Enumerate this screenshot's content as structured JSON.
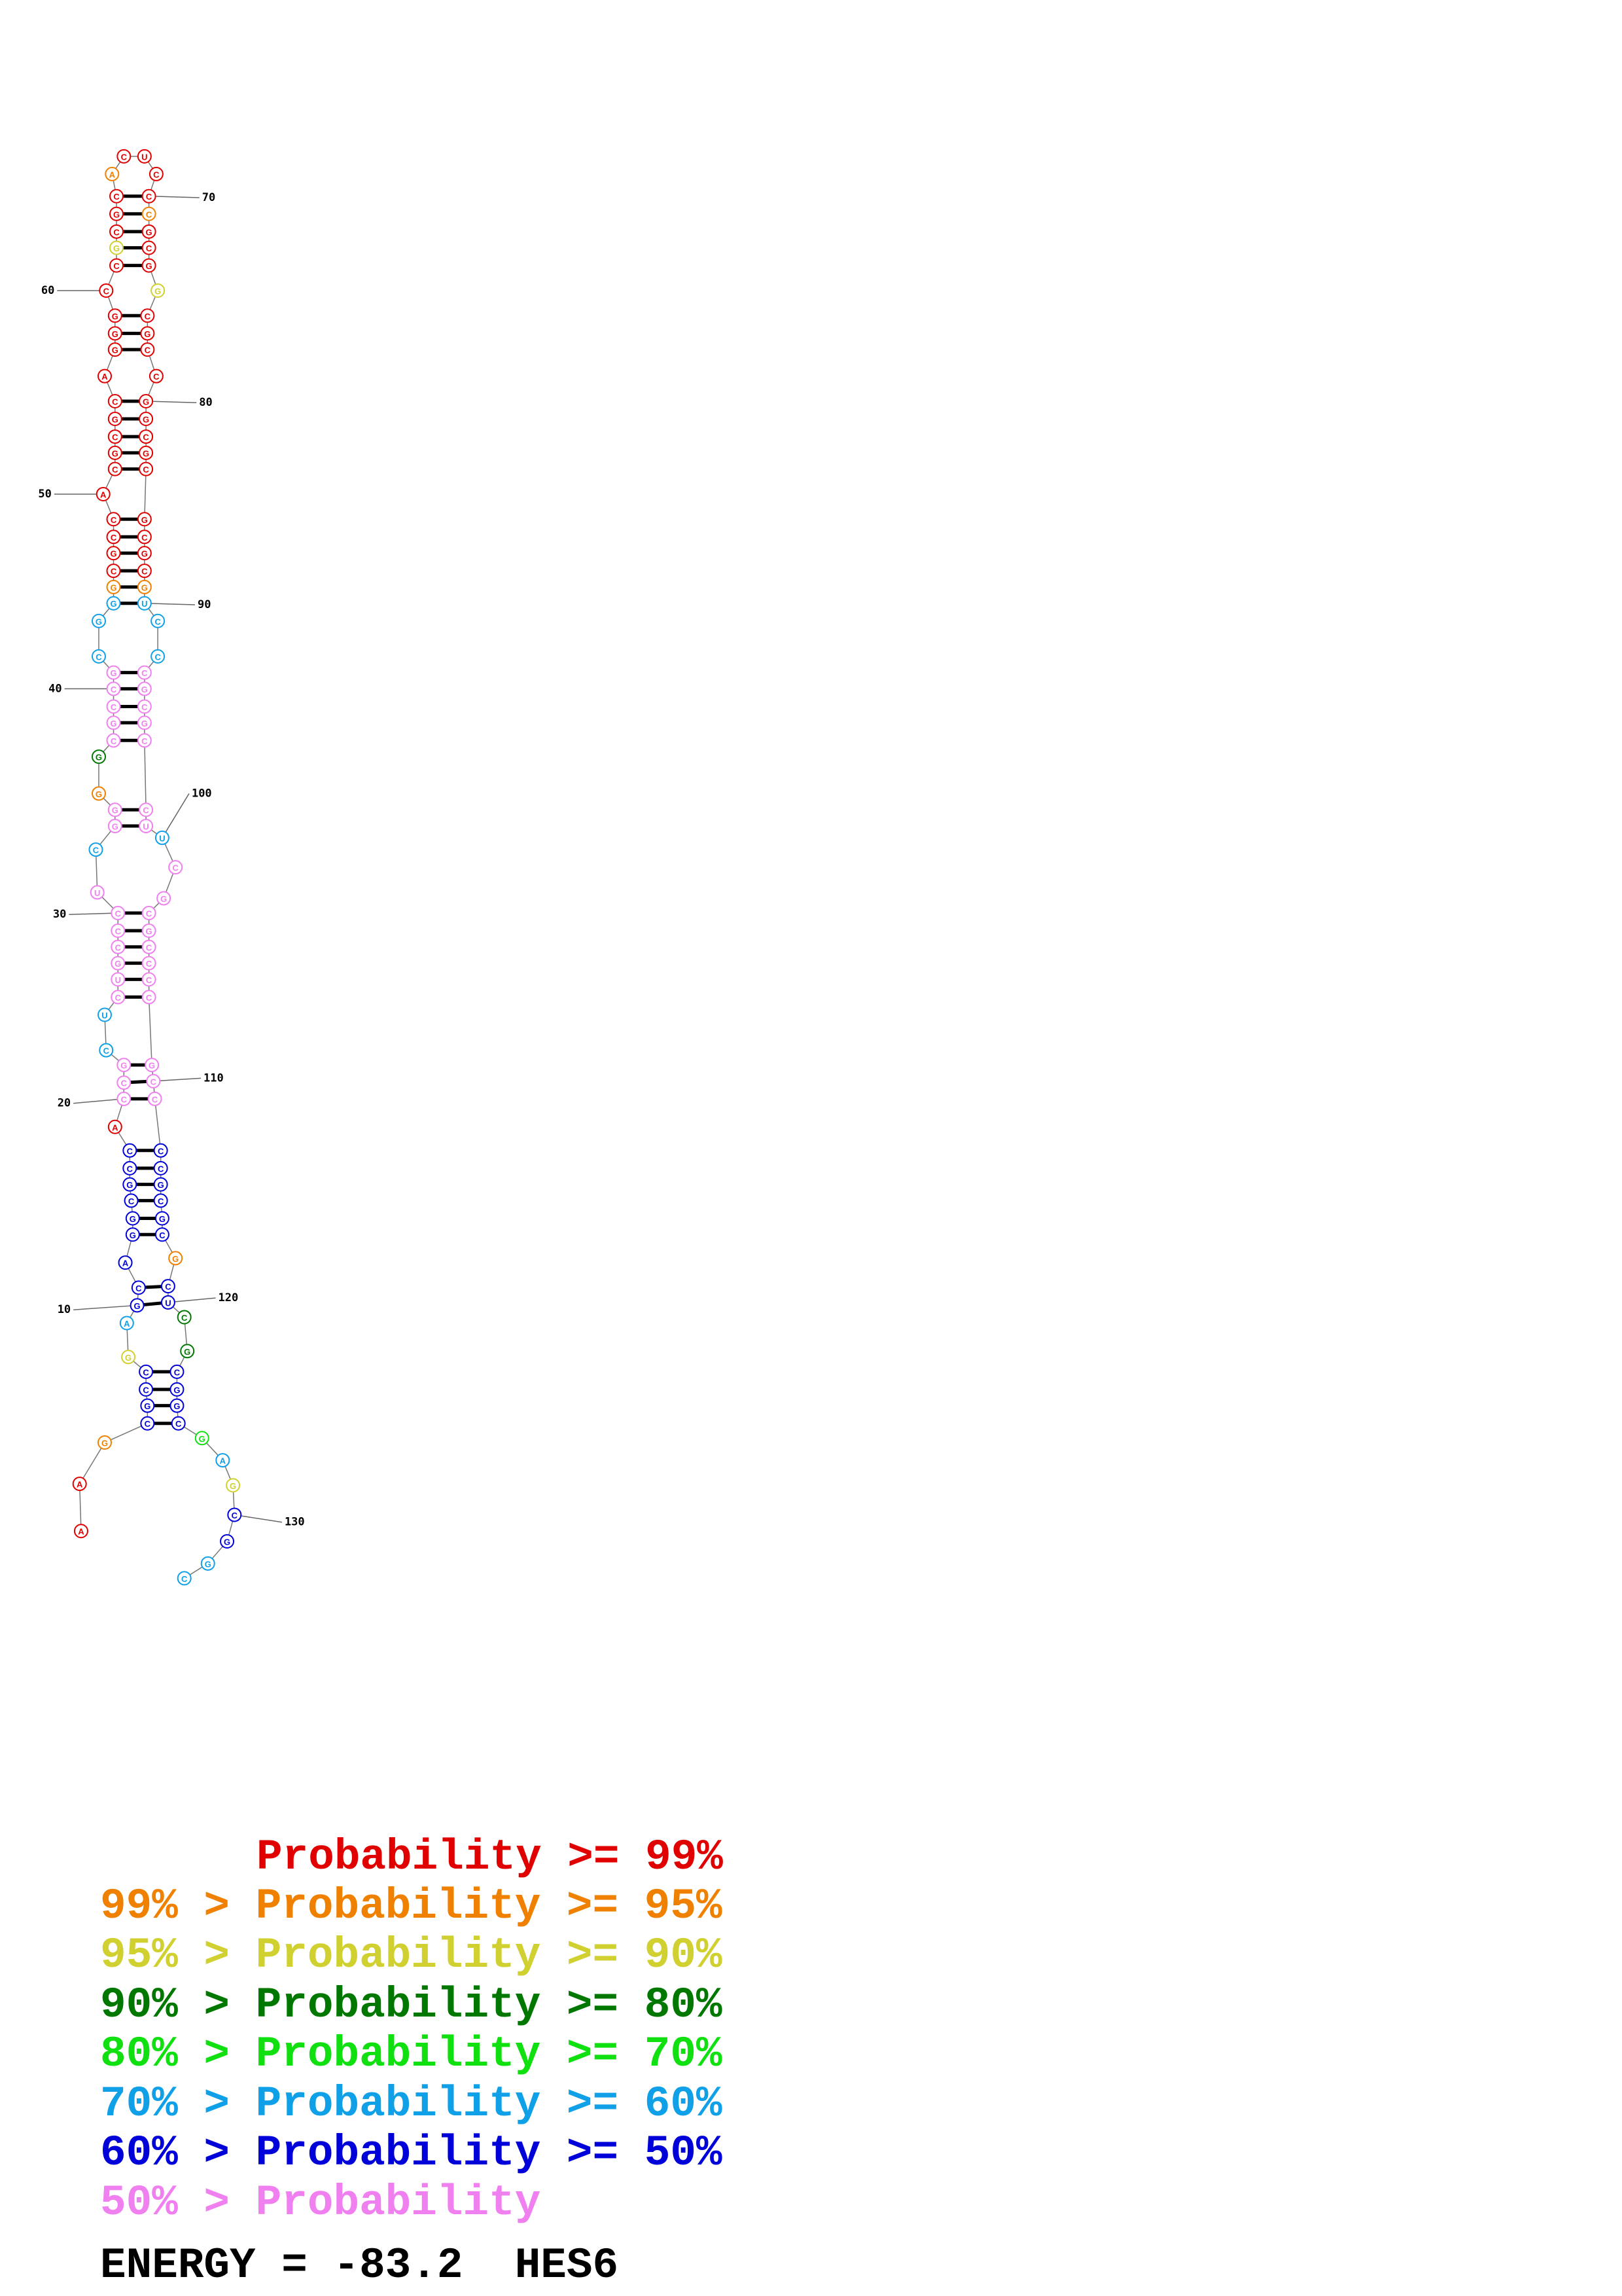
{
  "sequence": "AAGCGCCGAGCAGGCGCCACCGCUCUGCCCUCGGGGCGCCGCGGGCGCCACGCGCAGGGCCGCGCACUCCCGCGGCGCCGGCGCGCGCGUCCCGCGCCUUCGCGCCCCGCCCCGCGCGCUCGCGGCGAGCGGC",
  "probability_levels": "0016666256666666660777557777777577137777755510000000000000000200010000100020000000000000155577777775777777777776666661663366664526655",
  "position_labels": [
    10,
    20,
    30,
    40,
    50,
    60,
    70,
    80,
    90,
    100,
    110,
    120,
    130
  ],
  "legend": {
    "colors": [
      "#e00000",
      "#f08000",
      "#d0d030",
      "#007800",
      "#10e010",
      "#10a0e8",
      "#0000d8",
      "#f080f0"
    ],
    "lines": [
      "Probability >= 99%",
      "99% > Probability >= 95%",
      "95% > Probability >= 90%",
      "90% > Probability >= 80%",
      "80% > Probability >= 70%",
      "70% > Probability >= 60%",
      "60% > Probability >= 50%",
      "50% > Probability"
    ]
  },
  "energy_line": "ENERGY = -83.2  HES6"
}
